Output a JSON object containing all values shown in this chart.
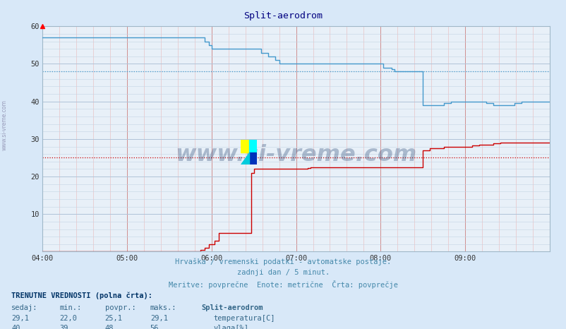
{
  "title": "Split-aerodrom",
  "bg_color": "#d8e8f8",
  "plot_bg_color": "#e8f0f8",
  "red_line_color": "#cc0000",
  "blue_line_color": "#4499cc",
  "dotted_red": 25.1,
  "dotted_blue": 48.0,
  "xmin": 0,
  "xmax": 360,
  "ymin": 0,
  "ymax": 60,
  "yticks": [
    10,
    20,
    30,
    40,
    50,
    60
  ],
  "xtick_labels": [
    "04:00",
    "05:00",
    "06:00",
    "07:00",
    "08:00",
    "09:00"
  ],
  "xtick_positions": [
    0,
    60,
    120,
    180,
    240,
    300
  ],
  "footer_line1": "Hrvaška / vremenski podatki - avtomatske postaje.",
  "footer_line2": "zadnji dan / 5 minut.",
  "footer_line3": "Meritve: povprečne  Enote: metrične  Črta: povprečje",
  "label_trenutne": "TRENUTNE VREDNOSTI (polna črta):",
  "col_sedaj": "sedaj:",
  "col_min": "min.:",
  "col_povpr": "povpr.:",
  "col_maks": "maks.:",
  "col_station": "Split-aerodrom",
  "temp_sedaj": "29,1",
  "temp_min": "22,0",
  "temp_povpr": "25,1",
  "temp_maks": "29,1",
  "temp_label": "temperatura[C]",
  "vlaga_sedaj": "40",
  "vlaga_min": "39",
  "vlaga_povpr": "48",
  "vlaga_maks": "56",
  "vlaga_label": "vlaga[%]",
  "watermark": "www.si-vreme.com",
  "watermark_color": "#1a3a6a",
  "temp_data_x": [
    0,
    110,
    112,
    115,
    118,
    122,
    125,
    148,
    150,
    152,
    185,
    188,
    190,
    210,
    212,
    215,
    240,
    242,
    245,
    250,
    255,
    260,
    265,
    268,
    270,
    275,
    280,
    285,
    290,
    295,
    300,
    305,
    310,
    315,
    320,
    325,
    330,
    335,
    340,
    345,
    350,
    355,
    360
  ],
  "temp_data_y": [
    0,
    0,
    0.5,
    1,
    2,
    3,
    5,
    21,
    22,
    22,
    22,
    22.2,
    22.5,
    22.5,
    22.5,
    22.5,
    22.5,
    22.5,
    22.5,
    22.5,
    22.5,
    22.5,
    22.5,
    22.5,
    27,
    27.5,
    27.5,
    28,
    28,
    28,
    28,
    28.2,
    28.5,
    28.5,
    28.8,
    29,
    29,
    29,
    29,
    29,
    29,
    29,
    29
  ],
  "vlaga_data_x": [
    0,
    5,
    90,
    92,
    95,
    100,
    115,
    118,
    120,
    125,
    140,
    145,
    155,
    160,
    165,
    168,
    170,
    175,
    180,
    185,
    240,
    242,
    245,
    248,
    250,
    255,
    260,
    265,
    268,
    270,
    275,
    280,
    285,
    290,
    295,
    300,
    305,
    310,
    315,
    320,
    325,
    330,
    335,
    340,
    345,
    350,
    355,
    360
  ],
  "vlaga_data_y": [
    57,
    57,
    57,
    57,
    57,
    57,
    56,
    55,
    54,
    54,
    54,
    54,
    53,
    52,
    51,
    50,
    50,
    50,
    50,
    50,
    50,
    49,
    49,
    48.5,
    48,
    48,
    48,
    48,
    48,
    39,
    39,
    39,
    39.5,
    40,
    40,
    40,
    40,
    40,
    39.5,
    39,
    39,
    39,
    39.5,
    40,
    40,
    40,
    40,
    40
  ]
}
